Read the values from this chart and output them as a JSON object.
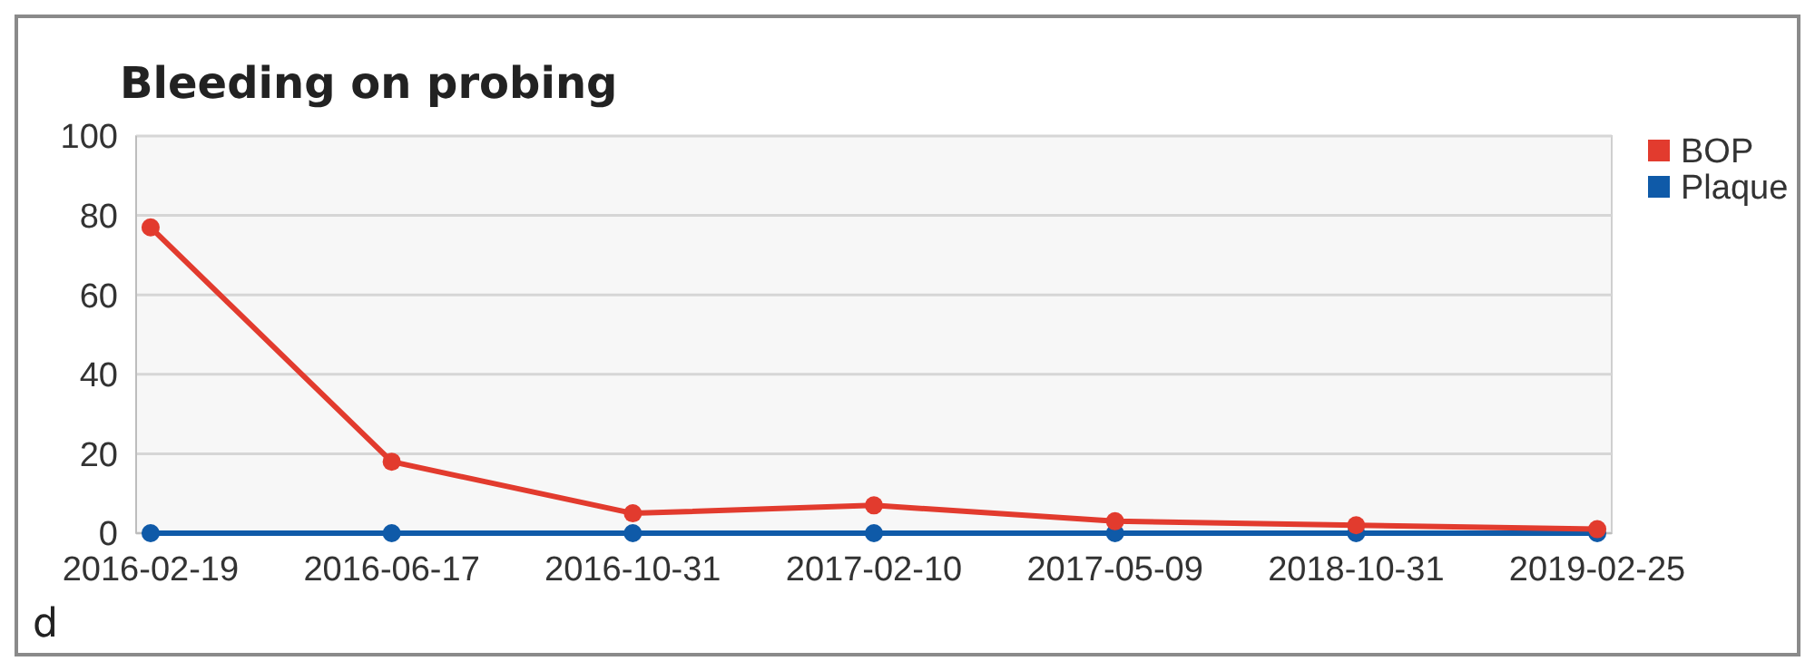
{
  "chart_data": {
    "type": "line",
    "title": "Bleeding on probing",
    "categories": [
      "2016-02-19",
      "2016-06-17",
      "2016-10-31",
      "2017-02-10",
      "2017-05-09",
      "2018-10-31",
      "2019-02-25"
    ],
    "series": [
      {
        "name": "BOP",
        "color": "#e23b2e",
        "values": [
          77,
          18,
          5,
          7,
          3,
          2,
          1
        ]
      },
      {
        "name": "Plaque",
        "color": "#0f5aa8",
        "values": [
          0,
          0,
          0,
          0,
          0,
          0,
          0
        ]
      }
    ],
    "ylim": [
      0,
      100
    ],
    "yticks": [
      0,
      20,
      40,
      60,
      80,
      100
    ],
    "grid": "y",
    "legend": "top right",
    "marker": "circle",
    "line_style": "solid",
    "annotations": [
      "d"
    ]
  }
}
